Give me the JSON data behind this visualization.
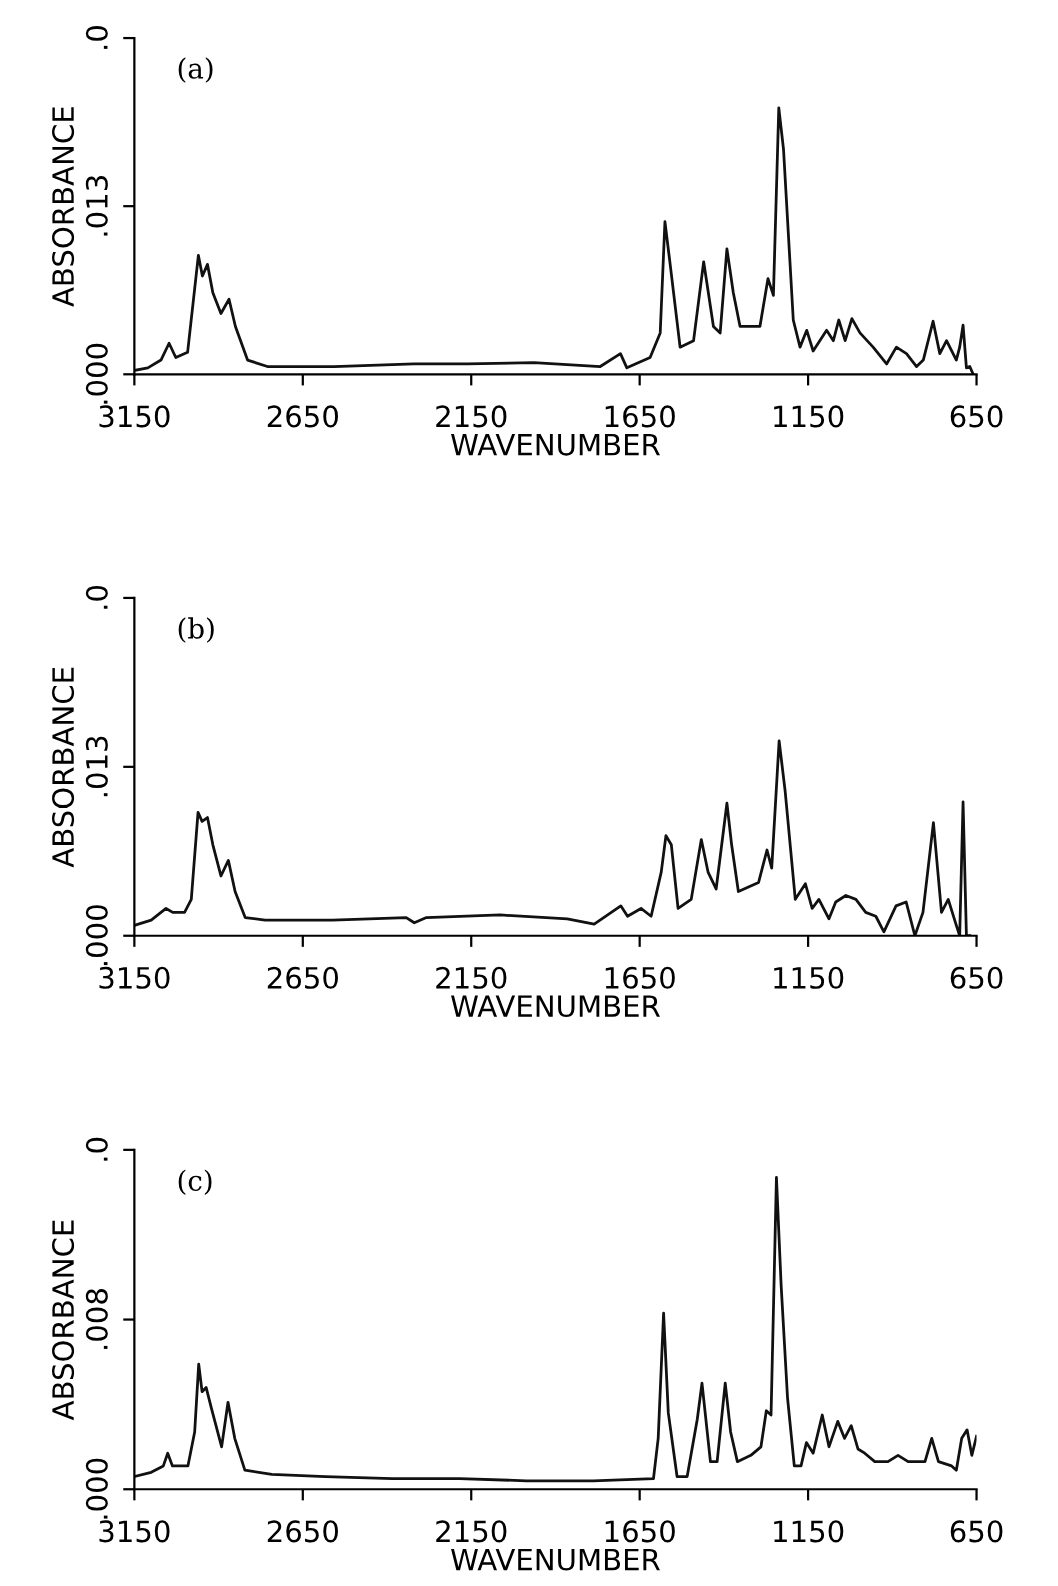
{
  "chart_data": [
    {
      "type": "line",
      "annotations": [
        "(a)"
      ],
      "xlabel": "WAVENUMBER",
      "ylabel": "ABSORBANCE",
      "xlim": [
        3150,
        650
      ],
      "ylim": [
        0,
        0.026
      ],
      "xticks": [
        3150,
        2650,
        2150,
        1650,
        1150,
        650
      ],
      "yticks": [
        {
          "value": 0,
          "label": ".000"
        },
        {
          "value": 0.013,
          "label": ".013"
        },
        {
          "value": 0.026,
          "label": ".0"
        }
      ],
      "grid": false,
      "legend": false,
      "marker": "none",
      "line_style": "solid",
      "series": [
        {
          "color": "#111111",
          "x": [
            3150,
            3110,
            3071,
            3047,
            3027,
            2992,
            2960,
            2948,
            2933,
            2917,
            2893,
            2869,
            2850,
            2814,
            2755,
            2557,
            2320,
            2162,
            1964,
            1767,
            1707,
            1688,
            1619,
            1589,
            1575,
            1559,
            1530,
            1490,
            1460,
            1431,
            1411,
            1391,
            1372,
            1352,
            1293,
            1269,
            1253,
            1237,
            1223,
            1194,
            1174,
            1154,
            1135,
            1095,
            1075,
            1059,
            1040,
            1020,
            996,
            957,
            917,
            888,
            858,
            828,
            808,
            779,
            759,
            739,
            710,
            700,
            690,
            680,
            670,
            660
          ],
          "values": [
            0.0003,
            0.0005,
            0.0011,
            0.0024,
            0.0013,
            0.0017,
            0.0092,
            0.0076,
            0.0085,
            0.0063,
            0.0047,
            0.0058,
            0.0037,
            0.0011,
            0.0006,
            0.0006,
            0.0008,
            0.0008,
            0.0009,
            0.0006,
            0.0016,
            0.0005,
            0.0013,
            0.0032,
            0.0118,
            0.0084,
            0.0021,
            0.0026,
            0.0087,
            0.0037,
            0.0032,
            0.0097,
            0.0063,
            0.0037,
            0.0037,
            0.0074,
            0.0061,
            0.0206,
            0.0174,
            0.0042,
            0.0021,
            0.0034,
            0.0018,
            0.0034,
            0.0026,
            0.0042,
            0.0026,
            0.0043,
            0.0032,
            0.0021,
            0.0008,
            0.0021,
            0.0016,
            0.0006,
            0.0011,
            0.0041,
            0.0016,
            0.0026,
            0.0011,
            0.0021,
            0.0038,
            0.0005,
            0.0006,
            0
          ]
        }
      ]
    },
    {
      "type": "line",
      "annotations": [
        "(b)"
      ],
      "xlabel": "WAVENUMBER",
      "ylabel": "ABSORBANCE",
      "xlim": [
        3150,
        650
      ],
      "ylim": [
        0,
        0.026
      ],
      "xticks": [
        3150,
        2650,
        2150,
        1650,
        1150,
        650
      ],
      "yticks": [
        {
          "value": 0,
          "label": ".000"
        },
        {
          "value": 0.013,
          "label": ".013"
        },
        {
          "value": 0.026,
          "label": ".0"
        }
      ],
      "grid": false,
      "legend": false,
      "marker": "none",
      "line_style": "solid",
      "series": [
        {
          "color": "#111111",
          "x": [
            3150,
            3100,
            3056,
            3036,
            3001,
            2981,
            2961,
            2949,
            2933,
            2917,
            2893,
            2871,
            2851,
            2821,
            2762,
            2562,
            2343,
            2319,
            2283,
            2064,
            1865,
            1785,
            1706,
            1686,
            1646,
            1616,
            1586,
            1572,
            1556,
            1536,
            1497,
            1467,
            1447,
            1423,
            1391,
            1377,
            1357,
            1297,
            1272,
            1258,
            1236,
            1218,
            1188,
            1158,
            1138,
            1118,
            1088,
            1068,
            1038,
            1008,
            979,
            949,
            925,
            889,
            859,
            833,
            809,
            778,
            754,
            734,
            710,
            700,
            690,
            680,
            670
          ],
          "values": [
            0.0008,
            0.0012,
            0.0021,
            0.0018,
            0.0018,
            0.0028,
            0.0095,
            0.0088,
            0.0091,
            0.007,
            0.0046,
            0.0058,
            0.0034,
            0.0014,
            0.0012,
            0.0012,
            0.0014,
            0.001,
            0.0014,
            0.0016,
            0.0013,
            0.0009,
            0.0023,
            0.0015,
            0.0021,
            0.0015,
            0.0049,
            0.0077,
            0.007,
            0.0021,
            0.0028,
            0.0074,
            0.0049,
            0.0036,
            0.0102,
            0.007,
            0.0034,
            0.0041,
            0.0066,
            0.0052,
            0.015,
            0.0111,
            0.0028,
            0.004,
            0.0021,
            0.0028,
            0.0013,
            0.0026,
            0.0031,
            0.0028,
            0.0018,
            0.0015,
            0.0003,
            0.0023,
            0.0026,
            0,
            0.0018,
            0.0087,
            0.0018,
            0.0028,
            0.0008,
            0,
            0.0103,
            0,
            0
          ]
        }
      ]
    },
    {
      "type": "line",
      "annotations": [
        "(c)"
      ],
      "xlabel": "WAVENUMBER",
      "ylabel": "ABSORBANCE",
      "xlim": [
        3150,
        650
      ],
      "ylim": [
        0,
        0.016
      ],
      "xticks": [
        3150,
        2650,
        2150,
        1650,
        1150,
        650
      ],
      "yticks": [
        {
          "value": 0,
          "label": ".000"
        },
        {
          "value": 0.008,
          "label": ".008"
        },
        {
          "value": 0.016,
          "label": ".0"
        }
      ],
      "grid": false,
      "legend": false,
      "marker": "none",
      "line_style": "solid",
      "series": [
        {
          "color": "#111111",
          "x": [
            3150,
            3100,
            3064,
            3051,
            3037,
            2991,
            2971,
            2959,
            2949,
            2937,
            2921,
            2891,
            2872,
            2852,
            2822,
            2742,
            2583,
            2384,
            2185,
            1986,
            1788,
            1609,
            1595,
            1579,
            1565,
            1539,
            1509,
            1479,
            1465,
            1440,
            1420,
            1396,
            1380,
            1360,
            1320,
            1290,
            1274,
            1260,
            1244,
            1230,
            1211,
            1191,
            1171,
            1155,
            1135,
            1108,
            1088,
            1062,
            1042,
            1022,
            1002,
            982,
            952,
            913,
            883,
            853,
            803,
            783,
            763,
            724,
            710,
            694,
            678,
            664,
            650
          ],
          "values": [
            0.0006,
            0.0008,
            0.0011,
            0.0017,
            0.0011,
            0.0011,
            0.0027,
            0.0059,
            0.0046,
            0.0048,
            0.0038,
            0.002,
            0.0041,
            0.0024,
            0.0009,
            0.0007,
            0.0006,
            0.0005,
            0.0005,
            0.0004,
            0.0004,
            0.0005,
            0.0024,
            0.0083,
            0.0036,
            0.0006,
            0.0006,
            0.0033,
            0.005,
            0.0013,
            0.0013,
            0.005,
            0.0027,
            0.0013,
            0.0016,
            0.002,
            0.0037,
            0.0035,
            0.0147,
            0.0096,
            0.0043,
            0.0011,
            0.0011,
            0.0022,
            0.0017,
            0.0035,
            0.002,
            0.0032,
            0.0024,
            0.003,
            0.0019,
            0.0017,
            0.0013,
            0.0013,
            0.0016,
            0.0013,
            0.0013,
            0.0024,
            0.0013,
            0.0011,
            0.0009,
            0.0024,
            0.0028,
            0.0016,
            0.0025
          ]
        }
      ]
    }
  ]
}
